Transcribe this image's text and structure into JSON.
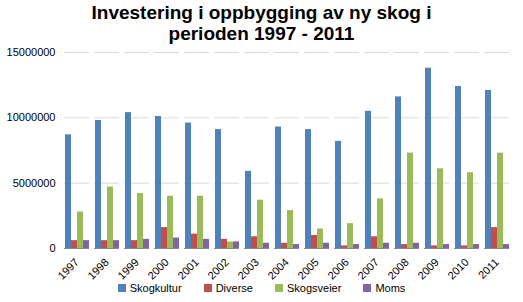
{
  "chart_data": {
    "type": "bar",
    "title": "Investering i oppbygging av ny skog i perioden 1997 - 2011",
    "categories": [
      "1997",
      "1998",
      "1999",
      "2000",
      "2001",
      "2002",
      "2003",
      "2004",
      "2005",
      "2006",
      "2007",
      "2008",
      "2009",
      "2010",
      "2011"
    ],
    "series": [
      {
        "name": "Skogkultur",
        "color": "#4f81bd",
        "values": [
          8700000,
          9800000,
          10400000,
          10100000,
          9600000,
          9100000,
          5900000,
          9300000,
          9100000,
          8200000,
          10500000,
          11600000,
          13800000,
          12400000,
          12100000
        ]
      },
      {
        "name": "Diverse",
        "color": "#c0504d",
        "values": [
          600000,
          600000,
          600000,
          1600000,
          1100000,
          700000,
          900000,
          400000,
          1000000,
          200000,
          900000,
          300000,
          200000,
          200000,
          1600000
        ]
      },
      {
        "name": "Skogsveier",
        "color": "#9bbb59",
        "values": [
          2800000,
          4700000,
          4200000,
          4000000,
          4000000,
          500000,
          3700000,
          2900000,
          1500000,
          1900000,
          3800000,
          7300000,
          6100000,
          5800000,
          7300000
        ]
      },
      {
        "name": "Moms",
        "color": "#8064a2",
        "values": [
          600000,
          600000,
          700000,
          800000,
          700000,
          500000,
          400000,
          300000,
          400000,
          300000,
          400000,
          400000,
          300000,
          300000,
          300000
        ]
      }
    ],
    "ylim": [
      0,
      15000000
    ],
    "yticks": [
      0,
      5000000,
      10000000,
      15000000
    ],
    "grid": true,
    "legend": "bottom"
  }
}
